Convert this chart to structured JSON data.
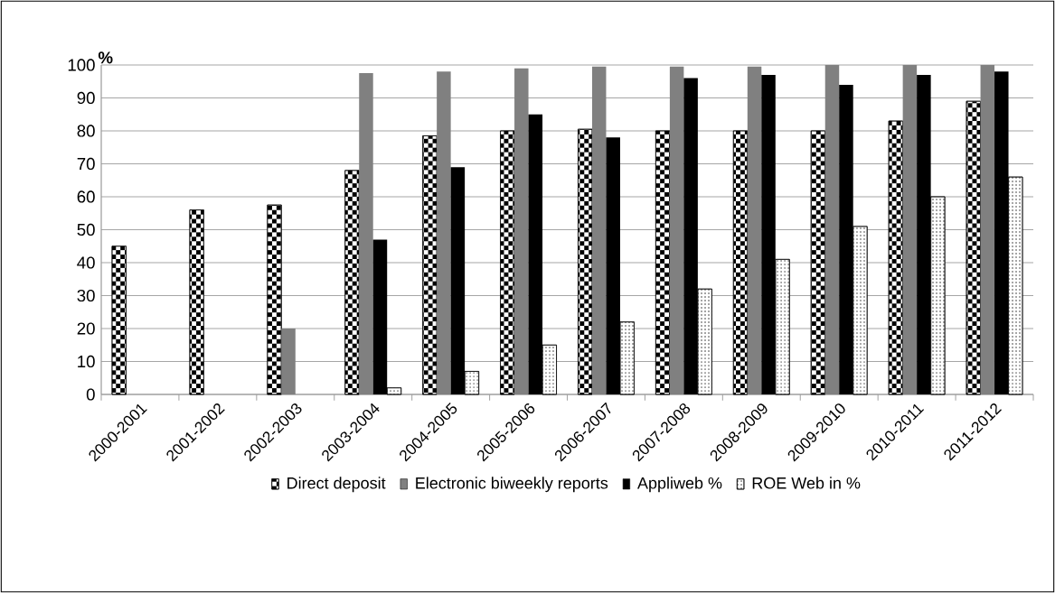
{
  "chart_data": {
    "type": "bar",
    "ylabel": "%",
    "categories": [
      "2000-2001",
      "2001-2002",
      "2002-2003",
      "2003-2004",
      "2004-2005",
      "2005-2006",
      "2006-2007",
      "2007-2008",
      "2008-2009",
      "2009-2010",
      "2010-2011",
      "2011-2012"
    ],
    "series": [
      {
        "name": "Direct deposit",
        "color": "#000000",
        "values": [
          45,
          56,
          57.5,
          68,
          78.5,
          80,
          80.5,
          80,
          80,
          80,
          83,
          89
        ]
      },
      {
        "name": "Electronic biweekly reports",
        "color": "#808080",
        "values": [
          null,
          null,
          20,
          97.5,
          98,
          99,
          99.5,
          99.5,
          99.5,
          100,
          100,
          100
        ]
      },
      {
        "name": "Appliweb %",
        "color": "#000000",
        "values": [
          null,
          null,
          null,
          47,
          69,
          85,
          78,
          96,
          97,
          94,
          97,
          98
        ]
      },
      {
        "name": "ROE Web in %",
        "color": "#000000",
        "values": [
          null,
          null,
          null,
          2,
          7,
          15,
          22,
          32,
          41,
          51,
          60,
          66
        ]
      }
    ],
    "ylim": [
      0,
      100
    ],
    "yticks": [
      0,
      10,
      20,
      30,
      40,
      50,
      60,
      70,
      80,
      90,
      100
    ],
    "grid": "y",
    "legend": "bottom"
  }
}
